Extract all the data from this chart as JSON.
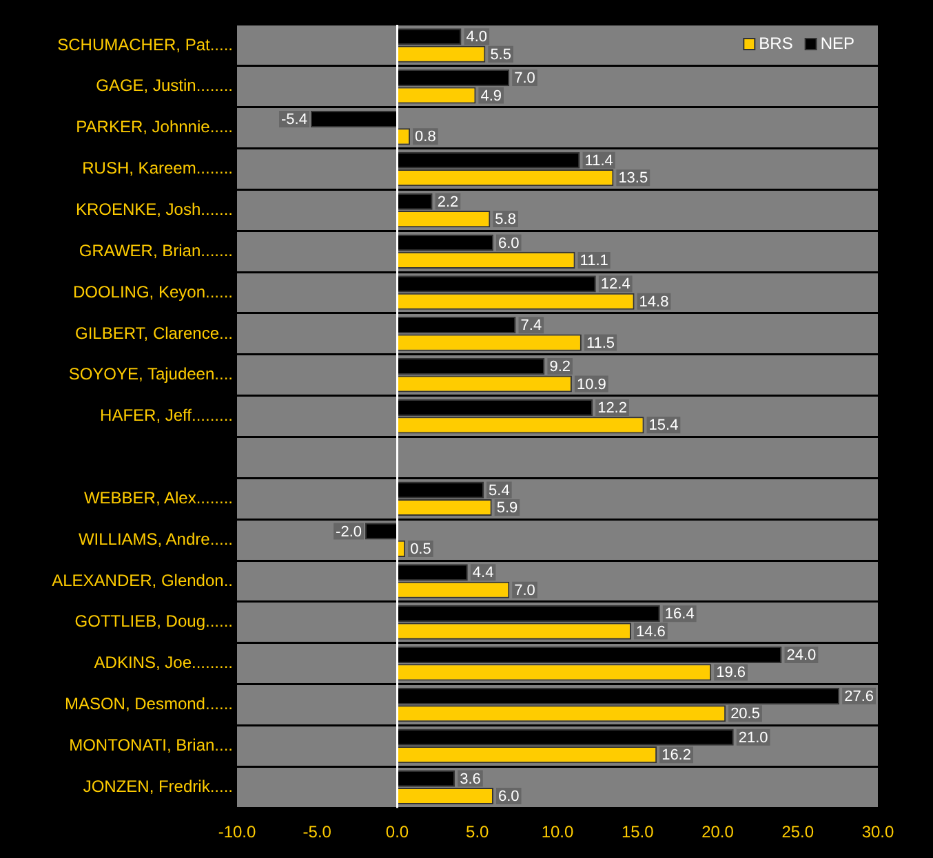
{
  "chart_data": {
    "type": "bar",
    "orientation": "horizontal",
    "categories": [
      "SCHUMACHER, Pat.....",
      "GAGE, Justin........",
      "PARKER, Johnnie.....",
      "RUSH, Kareem........",
      "KROENKE, Josh.......",
      "GRAWER, Brian.......",
      "DOOLING, Keyon......",
      "GILBERT, Clarence...",
      "SOYOYE, Tajudeen....",
      "HAFER, Jeff.........",
      null,
      "WEBBER, Alex........",
      "WILLIAMS, Andre.....",
      "ALEXANDER, Glendon..",
      "GOTTLIEB, Doug......",
      "ADKINS, Joe.........",
      "MASON, Desmond......",
      "MONTONATI, Brian....",
      "JONZEN, Fredrik....."
    ],
    "series": [
      {
        "name": "NEP",
        "color": "#000000",
        "values": [
          4.0,
          7.0,
          -5.4,
          11.4,
          2.2,
          6.0,
          12.4,
          7.4,
          9.2,
          12.2,
          null,
          5.4,
          -2.0,
          4.4,
          16.4,
          24.0,
          27.6,
          21.0,
          3.6
        ],
        "value_labels": [
          "4.0",
          "7.0",
          "-5.4",
          "11.4",
          "2.2",
          "6.0",
          "12.4",
          "7.4",
          "9.2",
          "12.2",
          null,
          "5.4",
          "-2.0",
          "4.4",
          "16.4",
          "24.0",
          "27.6",
          "21.0",
          "3.6"
        ]
      },
      {
        "name": "BRS",
        "color": "#ffcc00",
        "values": [
          5.5,
          4.9,
          0.8,
          13.5,
          5.8,
          11.1,
          14.8,
          11.5,
          10.9,
          15.4,
          null,
          5.9,
          0.5,
          7.0,
          14.6,
          19.6,
          20.5,
          16.2,
          6.0
        ],
        "value_labels": [
          "5.5",
          "4.9",
          "0.8",
          "13.5",
          "5.8",
          "11.1",
          "14.8",
          "11.5",
          "10.9",
          "15.4",
          null,
          "5.9",
          "0.5",
          "7.0",
          "14.6",
          "19.6",
          "20.5",
          "16.2",
          "6.0"
        ]
      }
    ],
    "xlim": [
      -10,
      30
    ],
    "xticks": [
      {
        "value": -10,
        "label": "-10.0"
      },
      {
        "value": -5,
        "label": "-5.0"
      },
      {
        "value": 0,
        "label": "0.0"
      },
      {
        "value": 5,
        "label": "5.0"
      },
      {
        "value": 10,
        "label": "10.0"
      },
      {
        "value": 15,
        "label": "15.0"
      },
      {
        "value": 20,
        "label": "20.0"
      },
      {
        "value": 25,
        "label": "25.0"
      },
      {
        "value": 30,
        "label": "30.0"
      }
    ],
    "ref_lines": [
      {
        "axis": "x",
        "value": 0,
        "color": "#ffffff"
      }
    ],
    "grid": "y",
    "legend": "top right"
  }
}
